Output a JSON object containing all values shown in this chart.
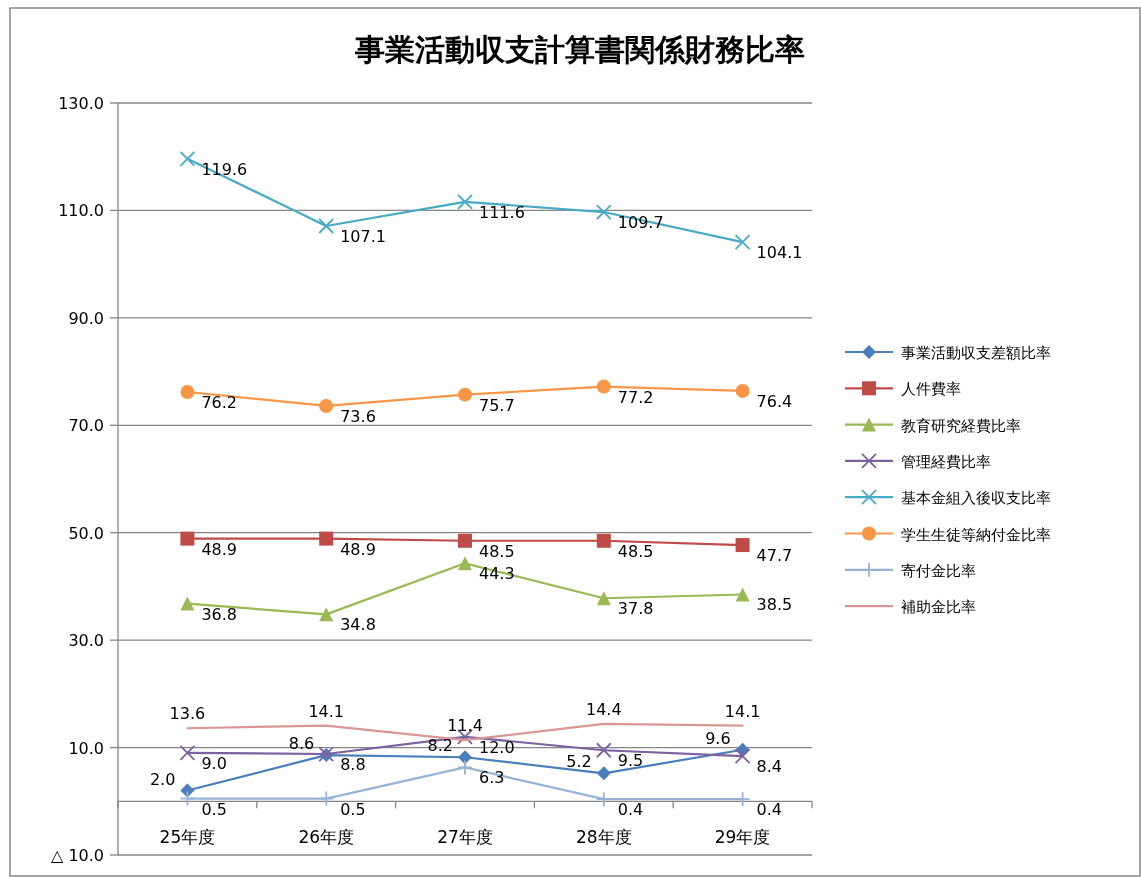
{
  "chart_data": {
    "type": "line",
    "title": "事業活動収支計算書関係財務比率",
    "categories": [
      "25年度",
      "26年度",
      "27年度",
      "28年度",
      "29年度"
    ],
    "ylim": [
      -10,
      130
    ],
    "yticks": [
      {
        "value": -10,
        "label": "△ 10.0"
      },
      {
        "value": 10,
        "label": "10.0"
      },
      {
        "value": 30,
        "label": "30.0"
      },
      {
        "value": 50,
        "label": "50.0"
      },
      {
        "value": 70,
        "label": "70.0"
      },
      {
        "value": 90,
        "label": "90.0"
      },
      {
        "value": 110,
        "label": "110.0"
      },
      {
        "value": 130,
        "label": "130.0"
      }
    ],
    "grid": "y",
    "legend": "right",
    "series": [
      {
        "name": "事業活動収支差額比率",
        "color": "#4a7ebb",
        "marker": "diamond",
        "values": [
          2.0,
          8.6,
          8.2,
          5.2,
          9.6
        ],
        "value_labels": [
          "2.0",
          "8.6",
          "8.2",
          "5.2",
          "9.6"
        ]
      },
      {
        "name": "人件費率",
        "color": "#be4b48",
        "marker": "square",
        "values": [
          48.9,
          48.9,
          48.5,
          48.5,
          47.7
        ],
        "value_labels": [
          "48.9",
          "48.9",
          "48.5",
          "48.5",
          "47.7"
        ]
      },
      {
        "name": "教育研究経費比率",
        "color": "#98b954",
        "marker": "triangle",
        "values": [
          36.8,
          34.8,
          44.3,
          37.8,
          38.5
        ],
        "value_labels": [
          "36.8",
          "34.8",
          "44.3",
          "37.8",
          "38.5"
        ]
      },
      {
        "name": "管理経費比率",
        "color": "#7d60a0",
        "marker": "cross",
        "values": [
          9.0,
          8.8,
          12.0,
          9.5,
          8.4
        ],
        "value_labels": [
          "9.0",
          "8.8",
          "12.0",
          "9.5",
          "8.4"
        ]
      },
      {
        "name": "基本金組入後収支比率",
        "color": "#46aac5",
        "marker": "cross",
        "values": [
          119.6,
          107.1,
          111.6,
          109.7,
          104.1
        ],
        "value_labels": [
          "119.6",
          "107.1",
          "111.6",
          "109.7",
          "104.1"
        ]
      },
      {
        "name": "学生生徒等納付金比率",
        "color": "#f79646",
        "marker": "circle",
        "values": [
          76.2,
          73.6,
          75.7,
          77.2,
          76.4
        ],
        "value_labels": [
          "76.2",
          "73.6",
          "75.7",
          "77.2",
          "76.4"
        ]
      },
      {
        "name": "寄付金比率",
        "color": "#95b3d7",
        "marker": "plus",
        "values": [
          0.5,
          0.5,
          6.3,
          0.4,
          0.4
        ],
        "value_labels": [
          "0.5",
          "0.5",
          "6.3",
          "0.4",
          "0.4"
        ]
      },
      {
        "name": "補助金比率",
        "color": "#d99694",
        "marker": "none",
        "values": [
          13.6,
          14.1,
          11.4,
          14.4,
          14.1
        ],
        "value_labels": [
          "13.6",
          "14.1",
          "11.4",
          "14.4",
          "14.1"
        ]
      }
    ]
  }
}
